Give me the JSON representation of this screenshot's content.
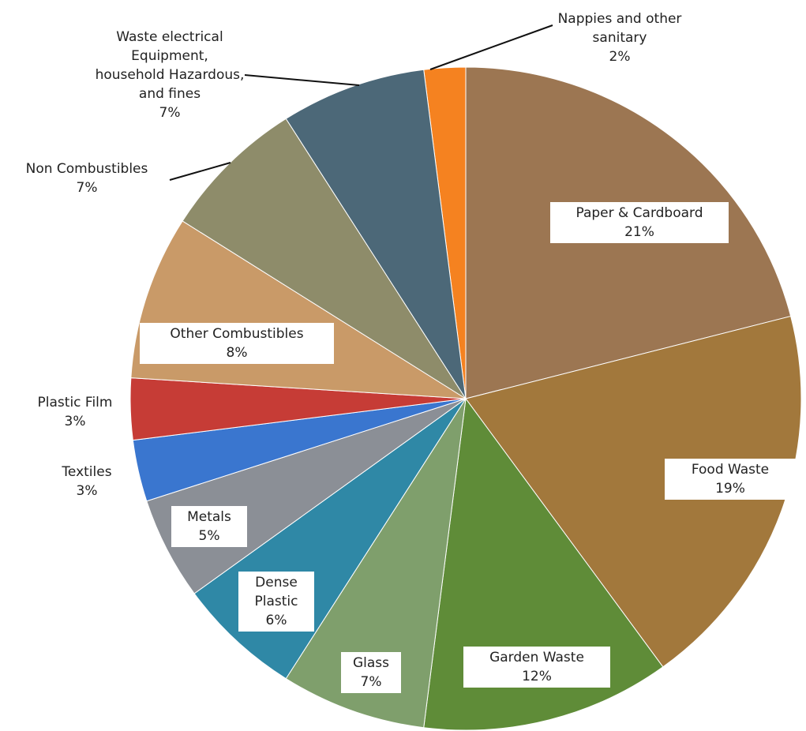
{
  "chart_data": {
    "type": "pie",
    "categories": [
      "Nappies and other sanitary",
      "Paper & Cardboard",
      "Food Waste",
      "Garden Waste",
      "Glass",
      "Dense Plastic",
      "Metals",
      "Textiles",
      "Plastic Film",
      "Other Combustibles",
      "Non Combustibles",
      "Waste electrical Equipment, household Hazardous, and fines"
    ],
    "values": [
      2,
      21,
      19,
      12,
      7,
      6,
      5,
      3,
      3,
      8,
      7,
      7
    ],
    "value_labels": [
      "2%",
      "21%",
      "19%",
      "12%",
      "7%",
      "6%",
      "5%",
      "3%",
      "3%",
      "8%",
      "7%",
      "7%"
    ],
    "colors": [
      "#f58220",
      "#9c7652",
      "#a2783c",
      "#5f8c38",
      "#7f9f6c",
      "#2f88a6",
      "#8b8f96",
      "#3a76cf",
      "#c63c36",
      "#c99a68",
      "#8e8c6a",
      "#4c6878"
    ]
  }
}
